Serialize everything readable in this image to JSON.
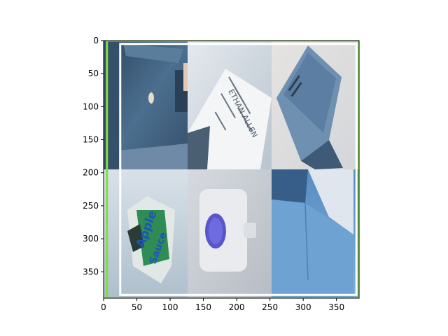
{
  "chart_data": {
    "type": "image",
    "xlabel": "",
    "ylabel": "",
    "xlim": [
      0,
      384
    ],
    "ylim": [
      390,
      0
    ],
    "x_ticks": [
      0,
      50,
      100,
      150,
      200,
      250,
      300,
      350
    ],
    "y_ticks": [
      0,
      50,
      100,
      150,
      200,
      250,
      300,
      350
    ],
    "grid_rows": 2,
    "grid_cols": 3,
    "tiles": [
      {
        "subject": "blue-cardboard-box-interior-icon",
        "fill": "#3f607e"
      },
      {
        "subject": "shipping-label-icon",
        "fill": "#c9d3dc"
      },
      {
        "subject": "folded-blue-paper-icon",
        "fill": "#6f8fae"
      },
      {
        "subject": "applesauce-pouch-icon",
        "fill": "#b6c6d2"
      },
      {
        "subject": "plastic-container-icon",
        "fill": "#c8ccd3"
      },
      {
        "subject": "blue-cardboard-box-icon",
        "fill": "#6fa0cf"
      }
    ],
    "tile_text": {
      "label_text": "ETHAN ALLEN",
      "pouch_brand": "Apple",
      "pouch_product": "Sauce"
    },
    "overlays": [
      {
        "name": "green-box",
        "color": "#7ee03a",
        "x": [
          5,
          384
        ],
        "y": [
          0,
          390
        ]
      },
      {
        "name": "white-box",
        "color": "#ffffff",
        "x": [
          25,
          380
        ],
        "y": [
          5,
          385
        ]
      }
    ]
  }
}
